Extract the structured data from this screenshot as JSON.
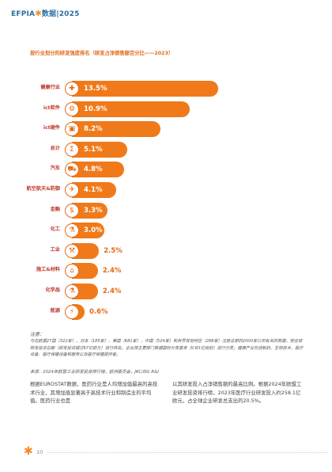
{
  "header": {
    "title_left": "EFPIA",
    "title_right": "数据|2025"
  },
  "chart_data": {
    "type": "bar",
    "title": "按行业划分的研发强度排名（研发占净销售额百分比——2023）",
    "categories": [
      "健康行业",
      "ict软件",
      "ict硬件",
      "总计",
      "汽车",
      "航空航天&防御",
      "金融",
      "化工",
      "工业",
      "施工&材料",
      "化学品",
      "能源"
    ],
    "values": [
      13.5,
      10.9,
      8.2,
      5.1,
      4.8,
      4.1,
      3.3,
      3.0,
      2.5,
      2.4,
      2.4,
      0.6
    ],
    "labels": [
      "13.5%",
      "10.9%",
      "8.2%",
      "5.1%",
      "4.8%",
      "4.1%",
      "3.3%",
      "3.0%",
      "2.5%",
      "2.4%",
      "2.4%",
      "0.6%"
    ],
    "icons": [
      "health-icon",
      "software-icon",
      "hardware-icon",
      "total-icon",
      "car-icon",
      "airplane-icon",
      "finance-icon",
      "chemistry-icon",
      "industry-icon",
      "construction-icon",
      "flask-icon",
      "energy-icon"
    ],
    "bar_color": "#f07a1a"
  },
  "notes": {
    "title": "注意：",
    "text": "与在欧盟27国（322家）、日本（185家）、美国（681家）、中国（524家）和世界其他地区（288家）注册总部的2000家公司有关的数据，按全球研发投资总额（研发投资超过67亿欧元）进行排名。企业按主要部门根据国际分类基准（ICB3位级别）进行分类；健康产业包括制药、生物技术、医疗设备、医疗保健设备和服务以及医疗保健提供者。"
  },
  "source": "来源：2024年欧盟工业研发投资排行榜，欧洲委员会，JRC/DG R&I",
  "body": {
    "col1": "根据EUROSTAT数据，医药行业是人均增加值最高的高技术行业，其增加值显著高于高技术行业和制造业的平均值。医药行业也是",
    "col2": "以其研发投入占净销售额的最高比例。根据2024年欧盟工业研发投资排行榜，2023年医疗行业研发投入约258.1亿欧元，占全球企业研发总支出的20.5%。"
  },
  "footer": {
    "page": "10"
  }
}
